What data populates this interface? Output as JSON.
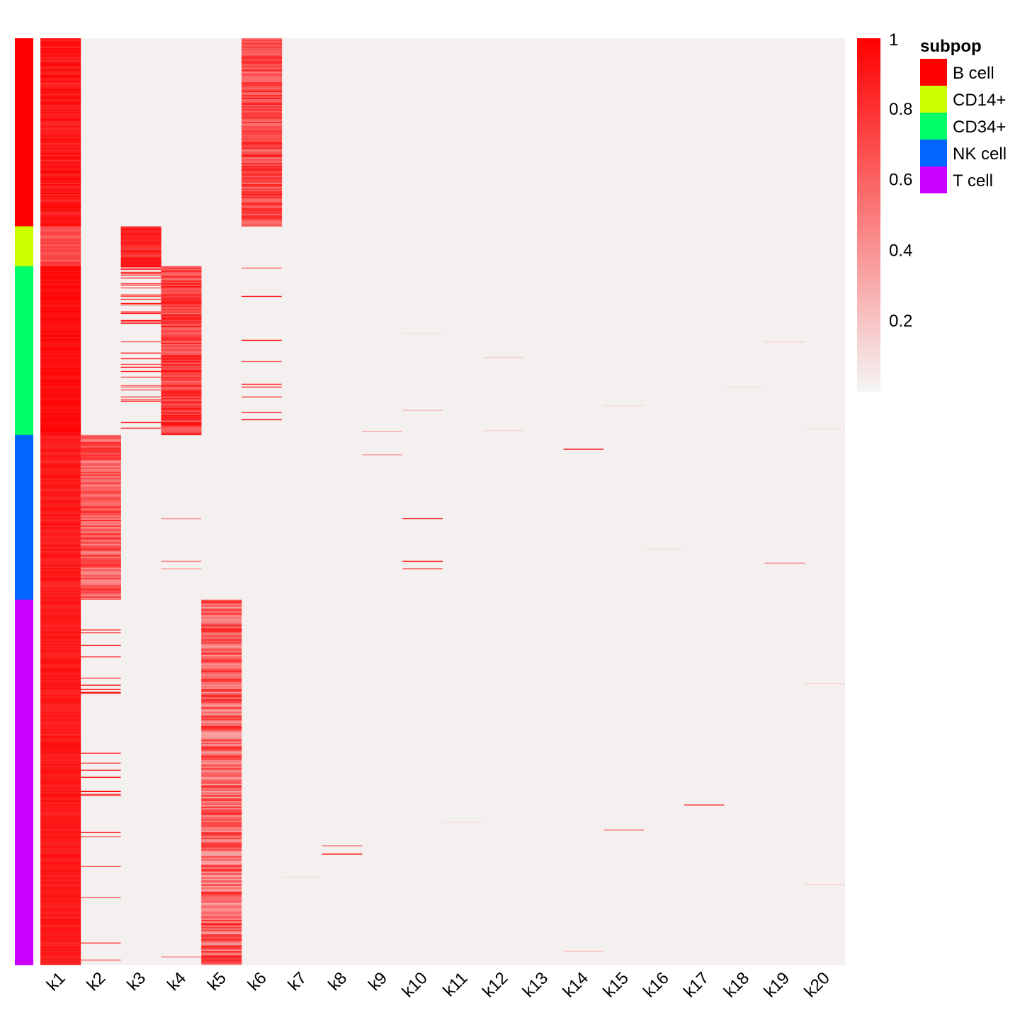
{
  "chart_data": {
    "type": "heatmap",
    "columns": [
      "k1",
      "k2",
      "k3",
      "k4",
      "k5",
      "k6",
      "k7",
      "k8",
      "k9",
      "k10",
      "k11",
      "k12",
      "k13",
      "k14",
      "k15",
      "k16",
      "k17",
      "k18",
      "k19",
      "k20"
    ],
    "row_groups": [
      {
        "name": "B cell",
        "color": "#FF0000",
        "fraction": 0.203
      },
      {
        "name": "CD14+",
        "color": "#CCFF00",
        "fraction": 0.043
      },
      {
        "name": "CD34+",
        "color": "#00FF66",
        "fraction": 0.182
      },
      {
        "name": "NK cell",
        "color": "#0066FF",
        "fraction": 0.178
      },
      {
        "name": "T cell",
        "color": "#CC00FF",
        "fraction": 0.394
      }
    ],
    "block_values": [
      {
        "group": "B cell",
        "column": "k1",
        "mean": 0.9,
        "variation": 0.08
      },
      {
        "group": "B cell",
        "column": "k6",
        "mean": 0.7,
        "variation": 0.18
      },
      {
        "group": "CD14+",
        "column": "k1",
        "mean": 0.7,
        "variation": 0.1
      },
      {
        "group": "CD14+",
        "column": "k3",
        "mean": 0.85,
        "variation": 0.1
      },
      {
        "group": "CD34+",
        "column": "k1",
        "mean": 0.95,
        "variation": 0.04
      },
      {
        "group": "CD34+",
        "column": "k4",
        "mean": 0.75,
        "variation": 0.2
      },
      {
        "group": "NK cell",
        "column": "k1",
        "mean": 0.88,
        "variation": 0.06
      },
      {
        "group": "NK cell",
        "column": "k2",
        "mean": 0.65,
        "variation": 0.22
      },
      {
        "group": "T cell",
        "column": "k1",
        "mean": 0.9,
        "variation": 0.05
      },
      {
        "group": "T cell",
        "column": "k5",
        "mean": 0.6,
        "variation": 0.28
      }
    ],
    "sparse_marks": [
      {
        "group": "CD34+",
        "column": "k3",
        "density": 0.35
      },
      {
        "group": "CD34+",
        "column": "k6",
        "density": 0.06
      },
      {
        "group": "T cell",
        "column": "k2",
        "density": 0.07
      }
    ],
    "scattered_cells": [
      {
        "column": "k10",
        "row_fraction": 0.518,
        "value": 1.0
      },
      {
        "column": "k10",
        "row_fraction": 0.564,
        "value": 0.9
      },
      {
        "column": "k10",
        "row_fraction": 0.572,
        "value": 0.6
      },
      {
        "column": "k9",
        "row_fraction": 0.449,
        "value": 0.4
      },
      {
        "column": "k9",
        "row_fraction": 0.424,
        "value": 0.3
      },
      {
        "column": "k14",
        "row_fraction": 0.443,
        "value": 0.8
      },
      {
        "column": "k17",
        "row_fraction": 0.827,
        "value": 0.9
      },
      {
        "column": "k8",
        "row_fraction": 0.88,
        "value": 1.0
      },
      {
        "column": "k8",
        "row_fraction": 0.871,
        "value": 0.5
      },
      {
        "column": "k15",
        "row_fraction": 0.854,
        "value": 0.5
      },
      {
        "column": "k19",
        "row_fraction": 0.566,
        "value": 0.4
      },
      {
        "column": "k4",
        "row_fraction": 0.518,
        "value": 0.5
      },
      {
        "column": "k4",
        "row_fraction": 0.564,
        "value": 0.5
      },
      {
        "column": "k4",
        "row_fraction": 0.572,
        "value": 0.3
      },
      {
        "column": "k4",
        "row_fraction": 0.991,
        "value": 0.4
      },
      {
        "column": "k12",
        "row_fraction": 0.344,
        "value": 0.15
      },
      {
        "column": "k12",
        "row_fraction": 0.423,
        "value": 0.15
      },
      {
        "column": "k10",
        "row_fraction": 0.401,
        "value": 0.2
      },
      {
        "column": "k10",
        "row_fraction": 0.318,
        "value": 0.1
      },
      {
        "column": "k19",
        "row_fraction": 0.327,
        "value": 0.15
      },
      {
        "column": "k18",
        "row_fraction": 0.376,
        "value": 0.1
      },
      {
        "column": "k15",
        "row_fraction": 0.396,
        "value": 0.1
      },
      {
        "column": "k20",
        "row_fraction": 0.421,
        "value": 0.1
      },
      {
        "column": "k11",
        "row_fraction": 0.846,
        "value": 0.1
      },
      {
        "column": "k14",
        "row_fraction": 0.985,
        "value": 0.2
      },
      {
        "column": "k20",
        "row_fraction": 0.696,
        "value": 0.15
      },
      {
        "column": "k20",
        "row_fraction": 0.913,
        "value": 0.15
      },
      {
        "column": "k7",
        "row_fraction": 0.905,
        "value": 0.1
      },
      {
        "column": "k16",
        "row_fraction": 0.551,
        "value": 0.1
      }
    ],
    "background_value": 0.02,
    "color_scale": {
      "min_color": "#F5F5F5",
      "max_color": "#FF0000",
      "range": [
        0,
        1
      ],
      "ticks": [
        "1",
        "0.8",
        "0.6",
        "0.4",
        "0.2"
      ]
    },
    "legend": {
      "title": "subpop",
      "entries": [
        {
          "label": "B cell",
          "color": "#FF0000"
        },
        {
          "label": "CD14+",
          "color": "#CCFF00"
        },
        {
          "label": "CD34+",
          "color": "#00FF66"
        },
        {
          "label": "NK cell",
          "color": "#0066FF"
        },
        {
          "label": "T cell",
          "color": "#CC00FF"
        }
      ],
      "placement": "top-right"
    }
  }
}
